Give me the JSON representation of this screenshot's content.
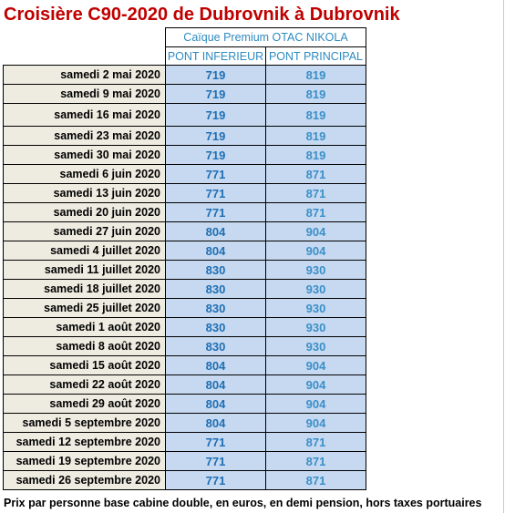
{
  "title": "Croisière C90-2020 de Dubrovnik à Dubrovnik",
  "ship": "Caïque Premium OTAC NIKOLA",
  "columns": {
    "lower": "PONT INFERIEUR",
    "main": "PONT PRINCIPAL"
  },
  "rows": [
    {
      "date": "samedi 2 mai 2020",
      "lower": "719",
      "main": "819"
    },
    {
      "date": "samedi 9 mai 2020",
      "lower": "719",
      "main": "819"
    },
    {
      "date": "samedi 16 mai 2020",
      "lower": "719",
      "main": "819"
    },
    {
      "date": "samedi 23 mai 2020",
      "lower": "719",
      "main": "819"
    },
    {
      "date": "samedi 30 mai 2020",
      "lower": "719",
      "main": "819"
    },
    {
      "date": "samedi 6 juin 2020",
      "lower": "771",
      "main": "871"
    },
    {
      "date": "samedi 13 juin 2020",
      "lower": "771",
      "main": "871"
    },
    {
      "date": "samedi 20 juin 2020",
      "lower": "771",
      "main": "871"
    },
    {
      "date": "samedi 27 juin 2020",
      "lower": "804",
      "main": "904"
    },
    {
      "date": "samedi 4 juillet 2020",
      "lower": "804",
      "main": "904"
    },
    {
      "date": "samedi 11 juillet 2020",
      "lower": "830",
      "main": "930"
    },
    {
      "date": "samedi 18 juillet 2020",
      "lower": "830",
      "main": "930"
    },
    {
      "date": "samedi 25 juillet 2020",
      "lower": "830",
      "main": "930"
    },
    {
      "date": "samedi 1 août 2020",
      "lower": "830",
      "main": "930"
    },
    {
      "date": "samedi 8 août 2020",
      "lower": "830",
      "main": "930"
    },
    {
      "date": "samedi 15 août 2020",
      "lower": "804",
      "main": "904"
    },
    {
      "date": "samedi 22 août 2020",
      "lower": "804",
      "main": "904"
    },
    {
      "date": "samedi 29 août 2020",
      "lower": "804",
      "main": "904"
    },
    {
      "date": "samedi 5 septembre 2020",
      "lower": "804",
      "main": "904"
    },
    {
      "date": "samedi 12 septembre 2020",
      "lower": "771",
      "main": "871"
    },
    {
      "date": "samedi 19 septembre 2020",
      "lower": "771",
      "main": "871"
    },
    {
      "date": "samedi 26 septembre 2020",
      "lower": "771",
      "main": "871"
    }
  ],
  "footer": "Prix par personne base cabine double, en euros, en demi pension, hors taxes portuaires"
}
